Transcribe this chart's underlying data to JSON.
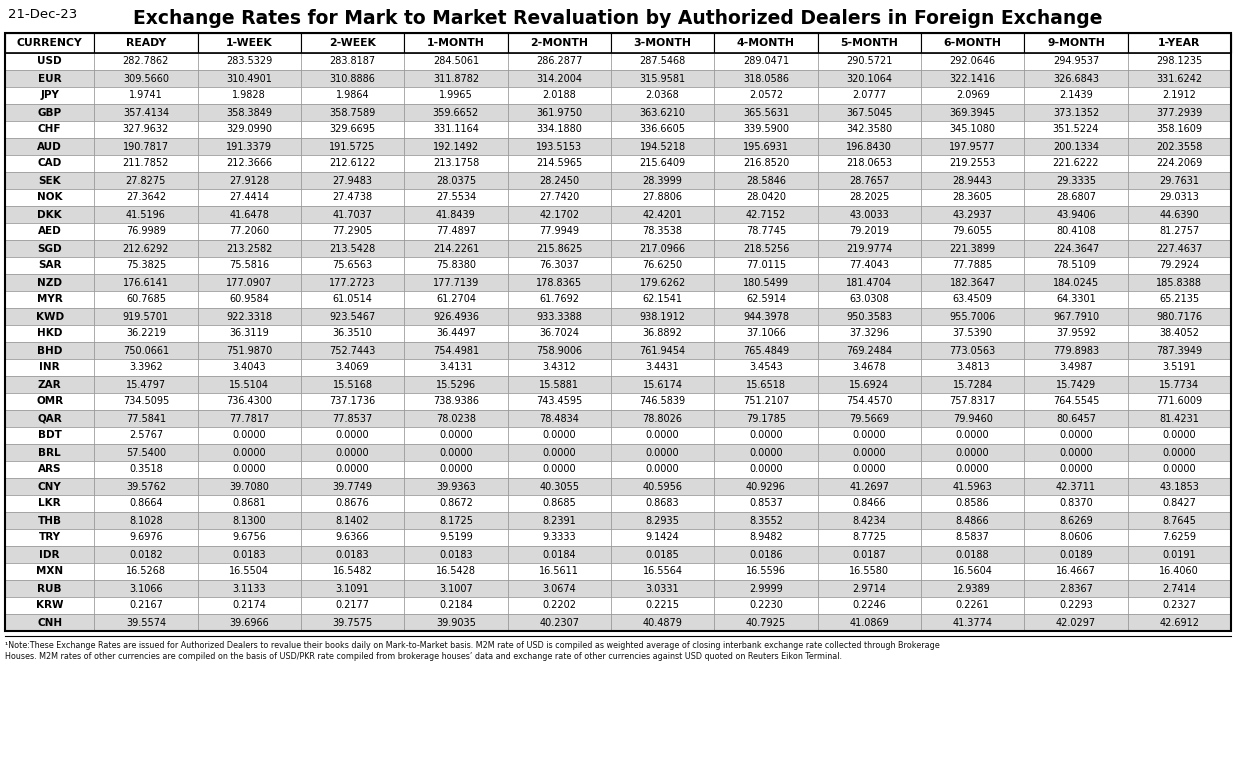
{
  "title": "Exchange Rates for Mark to Market Revaluation by Authorized Dealers in Foreign Exchange",
  "date": "21-Dec-23",
  "columns": [
    "CURRENCY",
    "READY",
    "1-WEEK",
    "2-WEEK",
    "1-MONTH",
    "2-MONTH",
    "3-MONTH",
    "4-MONTH",
    "5-MONTH",
    "6-MONTH",
    "9-MONTH",
    "1-YEAR"
  ],
  "rows": [
    [
      "USD",
      "282.7862",
      "283.5329",
      "283.8187",
      "284.5061",
      "286.2877",
      "287.5468",
      "289.0471",
      "290.5721",
      "292.0646",
      "294.9537",
      "298.1235"
    ],
    [
      "EUR",
      "309.5660",
      "310.4901",
      "310.8886",
      "311.8782",
      "314.2004",
      "315.9581",
      "318.0586",
      "320.1064",
      "322.1416",
      "326.6843",
      "331.6242"
    ],
    [
      "JPY",
      "1.9741",
      "1.9828",
      "1.9864",
      "1.9965",
      "2.0188",
      "2.0368",
      "2.0572",
      "2.0777",
      "2.0969",
      "2.1439",
      "2.1912"
    ],
    [
      "GBP",
      "357.4134",
      "358.3849",
      "358.7589",
      "359.6652",
      "361.9750",
      "363.6210",
      "365.5631",
      "367.5045",
      "369.3945",
      "373.1352",
      "377.2939"
    ],
    [
      "CHF",
      "327.9632",
      "329.0990",
      "329.6695",
      "331.1164",
      "334.1880",
      "336.6605",
      "339.5900",
      "342.3580",
      "345.1080",
      "351.5224",
      "358.1609"
    ],
    [
      "AUD",
      "190.7817",
      "191.3379",
      "191.5725",
      "192.1492",
      "193.5153",
      "194.5218",
      "195.6931",
      "196.8430",
      "197.9577",
      "200.1334",
      "202.3558"
    ],
    [
      "CAD",
      "211.7852",
      "212.3666",
      "212.6122",
      "213.1758",
      "214.5965",
      "215.6409",
      "216.8520",
      "218.0653",
      "219.2553",
      "221.6222",
      "224.2069"
    ],
    [
      "SEK",
      "27.8275",
      "27.9128",
      "27.9483",
      "28.0375",
      "28.2450",
      "28.3999",
      "28.5846",
      "28.7657",
      "28.9443",
      "29.3335",
      "29.7631"
    ],
    [
      "NOK",
      "27.3642",
      "27.4414",
      "27.4738",
      "27.5534",
      "27.7420",
      "27.8806",
      "28.0420",
      "28.2025",
      "28.3605",
      "28.6807",
      "29.0313"
    ],
    [
      "DKK",
      "41.5196",
      "41.6478",
      "41.7037",
      "41.8439",
      "42.1702",
      "42.4201",
      "42.7152",
      "43.0033",
      "43.2937",
      "43.9406",
      "44.6390"
    ],
    [
      "AED",
      "76.9989",
      "77.2060",
      "77.2905",
      "77.4897",
      "77.9949",
      "78.3538",
      "78.7745",
      "79.2019",
      "79.6055",
      "80.4108",
      "81.2757"
    ],
    [
      "SGD",
      "212.6292",
      "213.2582",
      "213.5428",
      "214.2261",
      "215.8625",
      "217.0966",
      "218.5256",
      "219.9774",
      "221.3899",
      "224.3647",
      "227.4637"
    ],
    [
      "SAR",
      "75.3825",
      "75.5816",
      "75.6563",
      "75.8380",
      "76.3037",
      "76.6250",
      "77.0115",
      "77.4043",
      "77.7885",
      "78.5109",
      "79.2924"
    ],
    [
      "NZD",
      "176.6141",
      "177.0907",
      "177.2723",
      "177.7139",
      "178.8365",
      "179.6262",
      "180.5499",
      "181.4704",
      "182.3647",
      "184.0245",
      "185.8388"
    ],
    [
      "MYR",
      "60.7685",
      "60.9584",
      "61.0514",
      "61.2704",
      "61.7692",
      "62.1541",
      "62.5914",
      "63.0308",
      "63.4509",
      "64.3301",
      "65.2135"
    ],
    [
      "KWD",
      "919.5701",
      "922.3318",
      "923.5467",
      "926.4936",
      "933.3388",
      "938.1912",
      "944.3978",
      "950.3583",
      "955.7006",
      "967.7910",
      "980.7176"
    ],
    [
      "HKD",
      "36.2219",
      "36.3119",
      "36.3510",
      "36.4497",
      "36.7024",
      "36.8892",
      "37.1066",
      "37.3296",
      "37.5390",
      "37.9592",
      "38.4052"
    ],
    [
      "BHD",
      "750.0661",
      "751.9870",
      "752.7443",
      "754.4981",
      "758.9006",
      "761.9454",
      "765.4849",
      "769.2484",
      "773.0563",
      "779.8983",
      "787.3949"
    ],
    [
      "INR",
      "3.3962",
      "3.4043",
      "3.4069",
      "3.4131",
      "3.4312",
      "3.4431",
      "3.4543",
      "3.4678",
      "3.4813",
      "3.4987",
      "3.5191"
    ],
    [
      "ZAR",
      "15.4797",
      "15.5104",
      "15.5168",
      "15.5296",
      "15.5881",
      "15.6174",
      "15.6518",
      "15.6924",
      "15.7284",
      "15.7429",
      "15.7734"
    ],
    [
      "OMR",
      "734.5095",
      "736.4300",
      "737.1736",
      "738.9386",
      "743.4595",
      "746.5839",
      "751.2107",
      "754.4570",
      "757.8317",
      "764.5545",
      "771.6009"
    ],
    [
      "QAR",
      "77.5841",
      "77.7817",
      "77.8537",
      "78.0238",
      "78.4834",
      "78.8026",
      "79.1785",
      "79.5669",
      "79.9460",
      "80.6457",
      "81.4231"
    ],
    [
      "BDT",
      "2.5767",
      "0.0000",
      "0.0000",
      "0.0000",
      "0.0000",
      "0.0000",
      "0.0000",
      "0.0000",
      "0.0000",
      "0.0000",
      "0.0000"
    ],
    [
      "BRL",
      "57.5400",
      "0.0000",
      "0.0000",
      "0.0000",
      "0.0000",
      "0.0000",
      "0.0000",
      "0.0000",
      "0.0000",
      "0.0000",
      "0.0000"
    ],
    [
      "ARS",
      "0.3518",
      "0.0000",
      "0.0000",
      "0.0000",
      "0.0000",
      "0.0000",
      "0.0000",
      "0.0000",
      "0.0000",
      "0.0000",
      "0.0000"
    ],
    [
      "CNY",
      "39.5762",
      "39.7080",
      "39.7749",
      "39.9363",
      "40.3055",
      "40.5956",
      "40.9296",
      "41.2697",
      "41.5963",
      "42.3711",
      "43.1853"
    ],
    [
      "LKR",
      "0.8664",
      "0.8681",
      "0.8676",
      "0.8672",
      "0.8685",
      "0.8683",
      "0.8537",
      "0.8466",
      "0.8586",
      "0.8370",
      "0.8427"
    ],
    [
      "THB",
      "8.1028",
      "8.1300",
      "8.1402",
      "8.1725",
      "8.2391",
      "8.2935",
      "8.3552",
      "8.4234",
      "8.4866",
      "8.6269",
      "8.7645"
    ],
    [
      "TRY",
      "9.6976",
      "9.6756",
      "9.6366",
      "9.5199",
      "9.3333",
      "9.1424",
      "8.9482",
      "8.7725",
      "8.5837",
      "8.0606",
      "7.6259"
    ],
    [
      "IDR",
      "0.0182",
      "0.0183",
      "0.0183",
      "0.0183",
      "0.0184",
      "0.0185",
      "0.0186",
      "0.0187",
      "0.0188",
      "0.0189",
      "0.0191"
    ],
    [
      "MXN",
      "16.5268",
      "16.5504",
      "16.5482",
      "16.5428",
      "16.5611",
      "16.5564",
      "16.5596",
      "16.5580",
      "16.5604",
      "16.4667",
      "16.4060"
    ],
    [
      "RUB",
      "3.1066",
      "3.1133",
      "3.1091",
      "3.1007",
      "3.0674",
      "3.0331",
      "2.9999",
      "2.9714",
      "2.9389",
      "2.8367",
      "2.7414"
    ],
    [
      "KRW",
      "0.2167",
      "0.2174",
      "0.2177",
      "0.2184",
      "0.2202",
      "0.2215",
      "0.2230",
      "0.2246",
      "0.2261",
      "0.2293",
      "0.2327"
    ],
    [
      "CNH",
      "39.5574",
      "39.6966",
      "39.7575",
      "39.9035",
      "40.2307",
      "40.4879",
      "40.7925",
      "41.0869",
      "41.3774",
      "42.0297",
      "42.6912"
    ]
  ],
  "footnote_line1": "¹Note:These Exchange Rates are issued for Authorized Dealers to revalue their books daily on Mark-to-Market basis. M2M rate of USD is compiled as weighted average of closing interbank exchange rate collected through Brokerage",
  "footnote_line2": "Houses. M2M rates of other currencies are compiled on the basis of USD/PKR rate compiled from brokerage houses’ data and exchange rate of other currencies against USD quoted on Reuters Eikon Terminal.",
  "header_bg": "#ffffff",
  "header_fg": "#000000",
  "row_odd_bg": "#ffffff",
  "row_even_bg": "#d9d9d9",
  "border_color": "#000000",
  "title_color": "#000000",
  "date_color": "#000000",
  "fig_width": 12.36,
  "fig_height": 7.67,
  "dpi": 100
}
